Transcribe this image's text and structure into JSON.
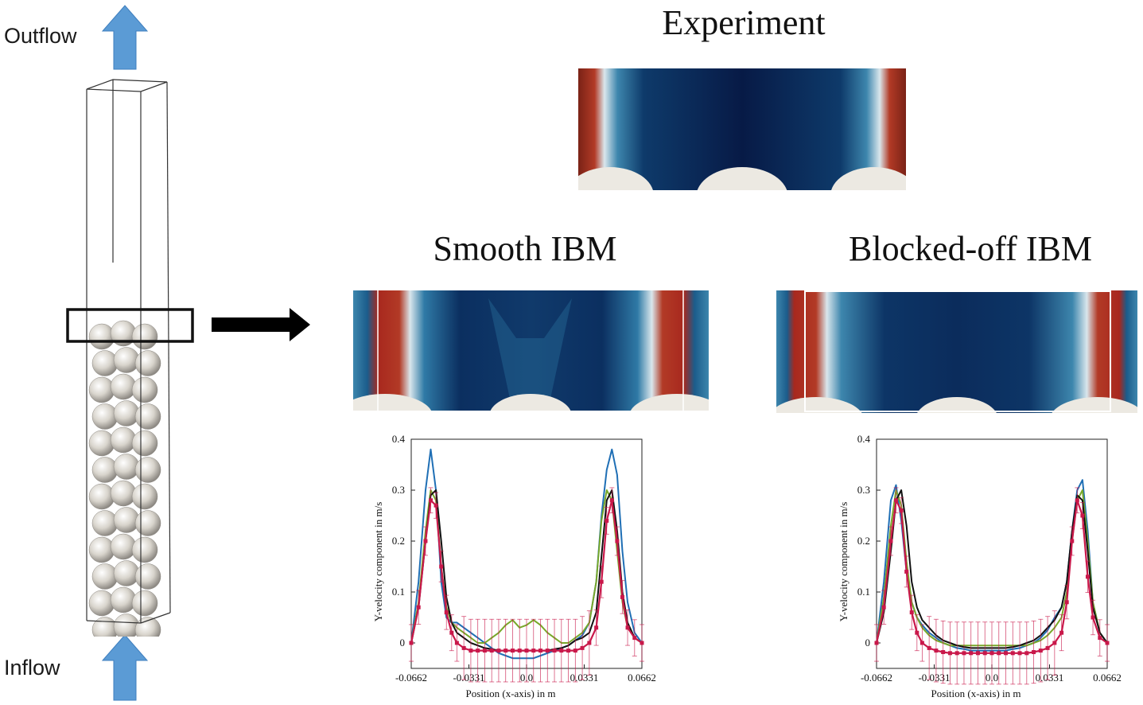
{
  "labels": {
    "outflow": "Outflow",
    "inflow": "Inflow",
    "experiment": "Experiment",
    "smooth": "Smooth IBM",
    "blocked": "Blocked-off IBM"
  },
  "colors": {
    "arrow_blue": "#5b9bd5",
    "field_dark": "#071a46",
    "field_mid": "#1f5f8b",
    "field_hot": "#a8281e",
    "sphere": "#e8e4dc",
    "line_blue": "#1f6fb5",
    "line_green": "#78a82a",
    "line_black": "#111111",
    "exp_red": "#c9184a"
  },
  "chart_data": [
    {
      "type": "line",
      "panel": "Smooth IBM",
      "xlabel": "Position (x-axis) in m",
      "ylabel": "Y-velocity component in m/s",
      "xlim": [
        -0.0662,
        0.0662
      ],
      "ylim": [
        -0.05,
        0.4
      ],
      "xticks": [
        "-0.0662",
        "-0.0331",
        "0.0",
        "0.0331",
        "0.0662"
      ],
      "yticks": [
        "0",
        "0.1",
        "0.2",
        "0.3",
        "0.4"
      ],
      "x": [
        -0.0662,
        -0.062,
        -0.058,
        -0.055,
        -0.052,
        -0.049,
        -0.046,
        -0.043,
        -0.04,
        -0.036,
        -0.032,
        -0.028,
        -0.024,
        -0.02,
        -0.016,
        -0.012,
        -0.008,
        -0.004,
        0.0,
        0.004,
        0.008,
        0.012,
        0.016,
        0.02,
        0.024,
        0.028,
        0.032,
        0.036,
        0.04,
        0.043,
        0.046,
        0.049,
        0.052,
        0.055,
        0.058,
        0.062,
        0.0662
      ],
      "series": [
        {
          "color": "#1f6fb5",
          "values": [
            0.0,
            0.12,
            0.3,
            0.38,
            0.3,
            0.12,
            0.05,
            0.04,
            0.04,
            0.03,
            0.02,
            0.01,
            0.0,
            -0.01,
            -0.02,
            -0.025,
            -0.03,
            -0.03,
            -0.03,
            -0.03,
            -0.025,
            -0.02,
            -0.015,
            -0.01,
            -0.005,
            0.005,
            0.015,
            0.04,
            0.12,
            0.25,
            0.34,
            0.38,
            0.33,
            0.18,
            0.08,
            0.02,
            0.0
          ]
        },
        {
          "color": "#78a82a",
          "values": [
            0.0,
            0.08,
            0.22,
            0.3,
            0.28,
            0.15,
            0.07,
            0.04,
            0.03,
            0.02,
            0.01,
            0.0,
            0.0,
            0.01,
            0.02,
            0.035,
            0.045,
            0.03,
            0.035,
            0.045,
            0.035,
            0.02,
            0.01,
            0.0,
            0.0,
            0.01,
            0.02,
            0.04,
            0.12,
            0.24,
            0.3,
            0.28,
            0.18,
            0.08,
            0.03,
            0.01,
            0.0
          ]
        },
        {
          "color": "#111111",
          "values": [
            0.0,
            0.07,
            0.2,
            0.29,
            0.3,
            0.2,
            0.09,
            0.04,
            0.02,
            0.01,
            0.0,
            -0.005,
            -0.01,
            -0.012,
            -0.015,
            -0.015,
            -0.015,
            -0.015,
            -0.015,
            -0.015,
            -0.015,
            -0.015,
            -0.012,
            -0.01,
            -0.005,
            0.005,
            0.01,
            0.02,
            0.06,
            0.17,
            0.28,
            0.3,
            0.22,
            0.1,
            0.04,
            0.01,
            0.0
          ]
        },
        {
          "color": "#c9184a",
          "marker": "square",
          "errorbars": true,
          "values": [
            0.0,
            0.07,
            0.2,
            0.28,
            0.27,
            0.15,
            0.06,
            0.02,
            0.0,
            -0.01,
            -0.015,
            -0.015,
            -0.015,
            -0.015,
            -0.015,
            -0.015,
            -0.015,
            -0.015,
            -0.015,
            -0.015,
            -0.015,
            -0.015,
            -0.015,
            -0.015,
            -0.015,
            -0.015,
            -0.01,
            0.0,
            0.03,
            0.12,
            0.24,
            0.28,
            0.2,
            0.09,
            0.03,
            0.01,
            0.0
          ]
        }
      ]
    },
    {
      "type": "line",
      "panel": "Blocked-off IBM",
      "xlabel": "Position (x-axis) in m",
      "ylabel": "Y-velocity component in m/s",
      "xlim": [
        -0.0662,
        0.0662
      ],
      "ylim": [
        -0.05,
        0.4
      ],
      "xticks": [
        "-0.0662",
        "-0.0331",
        "0.0",
        "0.0331",
        "0.0662"
      ],
      "yticks": [
        "0",
        "0.1",
        "0.2",
        "0.3",
        "0.4"
      ],
      "x": [
        -0.0662,
        -0.062,
        -0.058,
        -0.055,
        -0.052,
        -0.049,
        -0.046,
        -0.043,
        -0.04,
        -0.036,
        -0.032,
        -0.028,
        -0.024,
        -0.02,
        -0.016,
        -0.012,
        -0.008,
        -0.004,
        0.0,
        0.004,
        0.008,
        0.012,
        0.016,
        0.02,
        0.024,
        0.028,
        0.032,
        0.036,
        0.04,
        0.043,
        0.046,
        0.049,
        0.052,
        0.055,
        0.058,
        0.062,
        0.0662
      ],
      "series": [
        {
          "color": "#1f6fb5",
          "values": [
            0.0,
            0.12,
            0.28,
            0.31,
            0.24,
            0.14,
            0.08,
            0.05,
            0.035,
            0.02,
            0.01,
            0.0,
            -0.005,
            -0.01,
            -0.012,
            -0.015,
            -0.015,
            -0.015,
            -0.015,
            -0.015,
            -0.015,
            -0.012,
            -0.01,
            -0.005,
            0.0,
            0.01,
            0.025,
            0.05,
            0.07,
            0.12,
            0.22,
            0.3,
            0.32,
            0.22,
            0.08,
            0.02,
            0.0
          ]
        },
        {
          "color": "#78a82a",
          "values": [
            0.0,
            0.09,
            0.23,
            0.3,
            0.27,
            0.16,
            0.08,
            0.05,
            0.03,
            0.015,
            0.005,
            0.0,
            -0.005,
            -0.005,
            -0.005,
            -0.005,
            -0.005,
            -0.005,
            -0.005,
            -0.005,
            -0.005,
            -0.005,
            -0.005,
            -0.005,
            0.0,
            0.005,
            0.015,
            0.03,
            0.05,
            0.1,
            0.2,
            0.28,
            0.3,
            0.2,
            0.08,
            0.02,
            0.0
          ]
        },
        {
          "color": "#111111",
          "values": [
            0.0,
            0.06,
            0.18,
            0.28,
            0.3,
            0.23,
            0.12,
            0.07,
            0.045,
            0.03,
            0.015,
            0.005,
            0.0,
            -0.005,
            -0.008,
            -0.01,
            -0.01,
            -0.01,
            -0.01,
            -0.01,
            -0.01,
            -0.008,
            -0.005,
            0.0,
            0.005,
            0.015,
            0.03,
            0.045,
            0.07,
            0.12,
            0.22,
            0.29,
            0.28,
            0.18,
            0.07,
            0.02,
            0.0
          ]
        },
        {
          "color": "#c9184a",
          "marker": "square",
          "errorbars": true,
          "values": [
            0.0,
            0.07,
            0.2,
            0.28,
            0.26,
            0.14,
            0.06,
            0.02,
            0.0,
            -0.01,
            -0.015,
            -0.018,
            -0.02,
            -0.02,
            -0.02,
            -0.02,
            -0.02,
            -0.02,
            -0.02,
            -0.02,
            -0.02,
            -0.02,
            -0.02,
            -0.02,
            -0.018,
            -0.015,
            -0.01,
            0.0,
            0.02,
            0.08,
            0.2,
            0.28,
            0.25,
            0.13,
            0.05,
            0.01,
            0.0
          ]
        }
      ]
    }
  ]
}
